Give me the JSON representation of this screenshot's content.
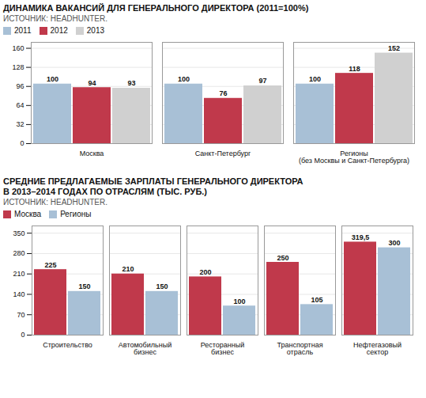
{
  "chart_data": [
    {
      "type": "bar",
      "title": "ДИНАМИКА ВАКАНСИЙ ДЛЯ ГЕНЕРАЛЬНОГО ДИРЕКТОРА (2011=100%)",
      "subtitle": "ИСТОЧНИК: HEADHUNTER.",
      "categories": [
        "Москва",
        "Санкт-Петербург",
        "Регионы\n(без Москвы и Санкт-Петербурга)"
      ],
      "series": [
        {
          "name": "2011",
          "color": "#a8c0d6",
          "values": [
            100,
            100,
            100
          ]
        },
        {
          "name": "2012",
          "color": "#c0394b",
          "values": [
            94,
            76,
            118
          ]
        },
        {
          "name": "2013",
          "color": "#d0d0d0",
          "values": [
            93,
            97,
            152
          ]
        }
      ],
      "ylim": [
        0,
        170
      ],
      "yticks": [
        0,
        32,
        64,
        96,
        128,
        160
      ],
      "grid": true,
      "legend": "upper left",
      "data_labels": true
    },
    {
      "type": "bar",
      "title": "СРЕДНИЕ ПРЕДЛАГАЕМЫЕ ЗАРПЛАТЫ ГЕНЕРАЛЬНОГО ДИРЕКТОРА\nВ 2013–2014 ГОДАХ ПО ОТРАСЛЯМ (ТЫС. РУБ.)",
      "subtitle": "ИСТОЧНИК: HEADHUNTER.",
      "categories": [
        "Строительство",
        "Автомобильный\nбизнес",
        "Ресторанный\nбизнес",
        "Транспортная\nотрасль",
        "Нефтегазовый\nсектор"
      ],
      "series": [
        {
          "name": "Москва",
          "color": "#c0394b",
          "values": [
            225,
            210,
            200,
            250,
            319.5
          ],
          "value_labels": [
            "225",
            "210",
            "200",
            "250",
            "319,5"
          ]
        },
        {
          "name": "Регионы",
          "color": "#a8c0d6",
          "values": [
            150,
            150,
            100,
            105,
            300
          ]
        }
      ],
      "ylim": [
        0,
        375
      ],
      "yticks": [
        0,
        70,
        140,
        210,
        280,
        350
      ],
      "grid": true,
      "legend": "upper left",
      "data_labels": true
    }
  ]
}
